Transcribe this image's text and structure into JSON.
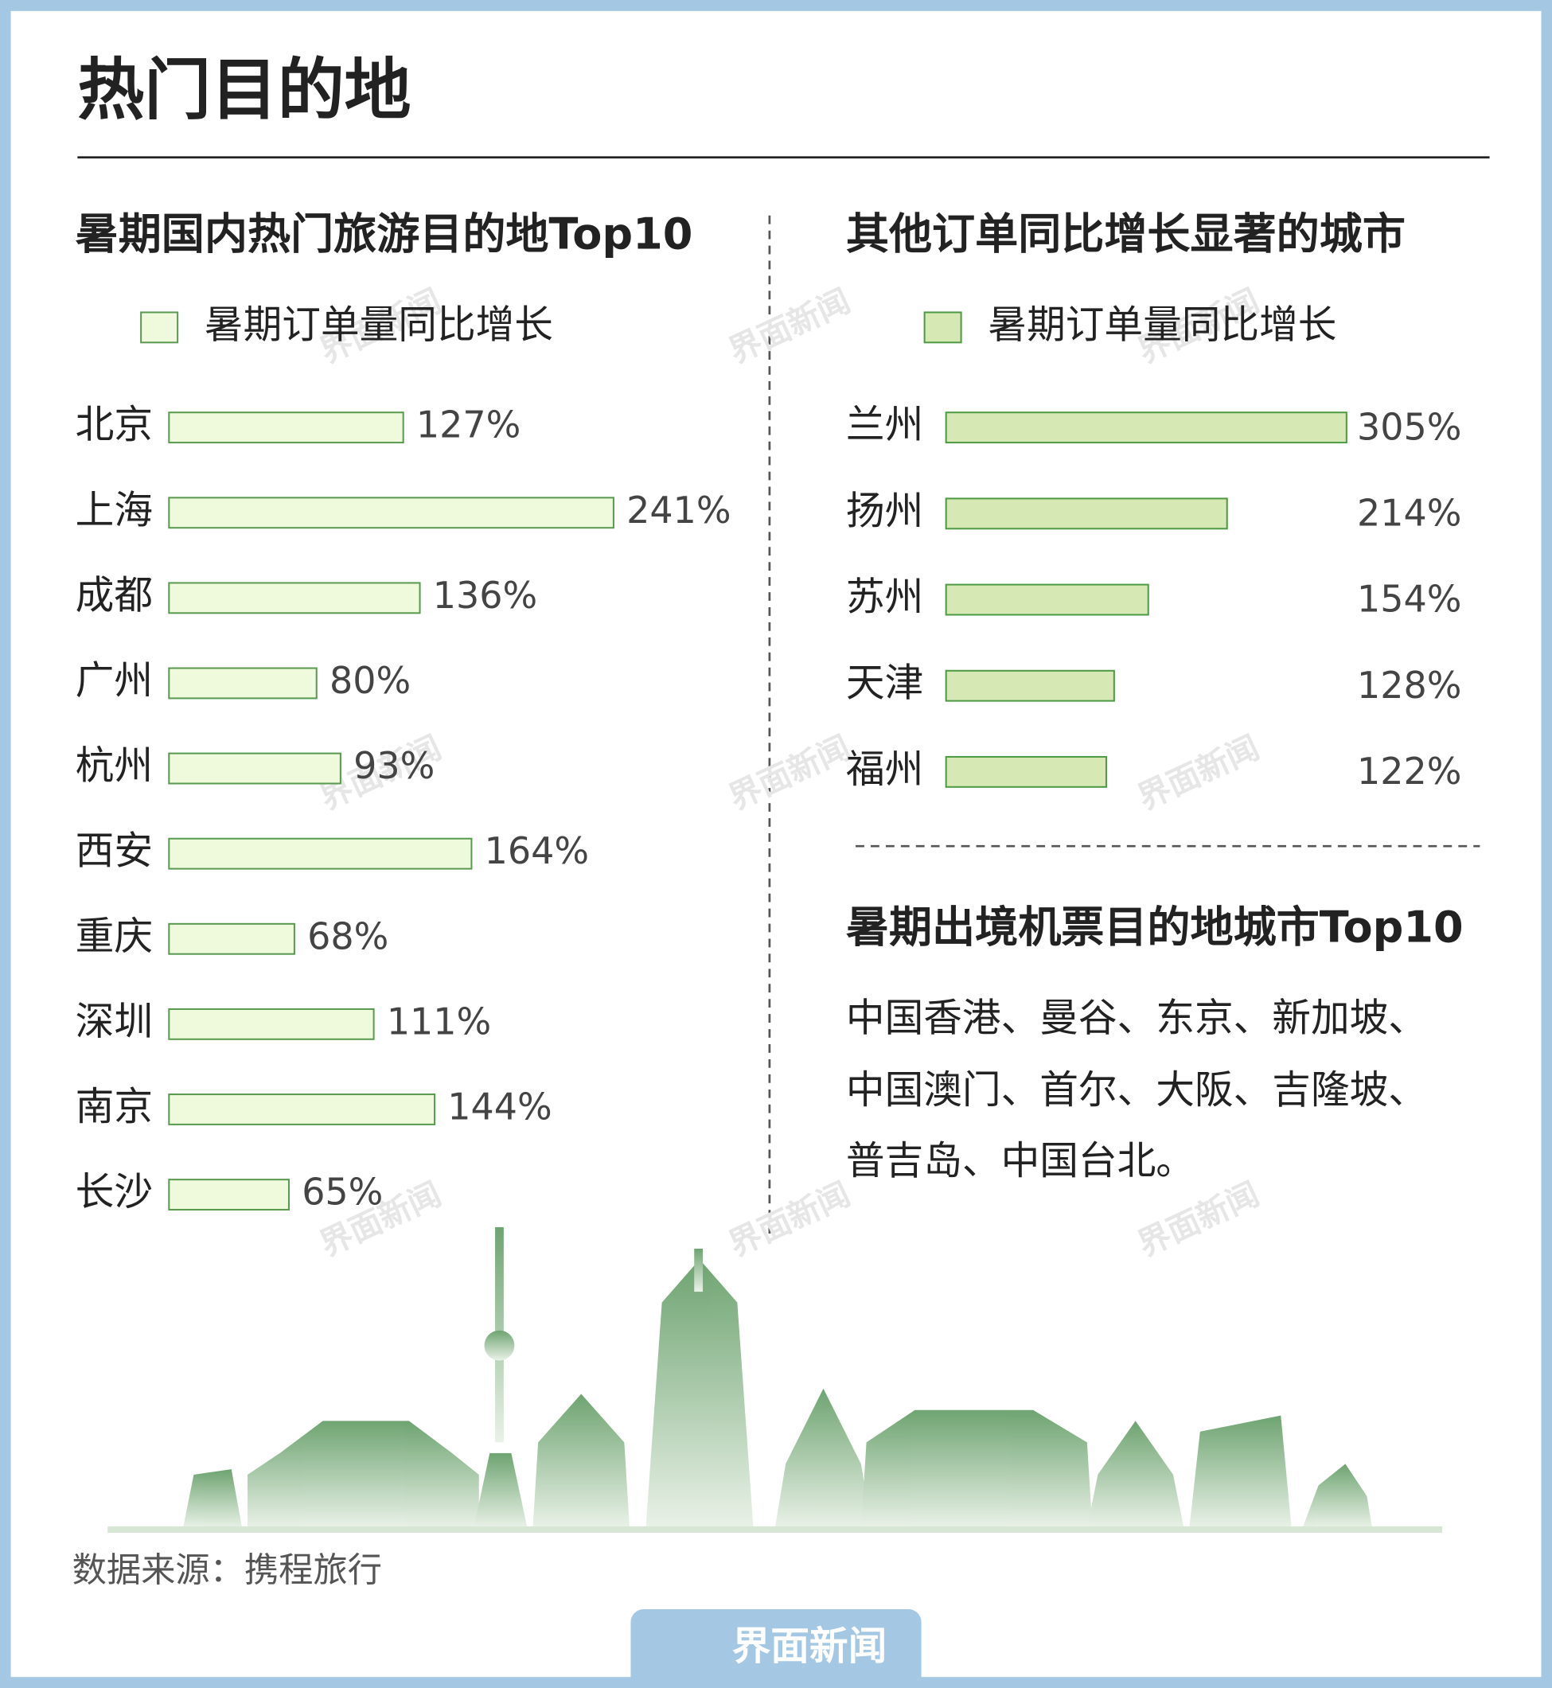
{
  "title": "热门目的地",
  "chart_data": [
    {
      "type": "hbar",
      "title": "暑期国内热门旅游目的地Top10",
      "categories": [
        "北京",
        "上海",
        "成都",
        "广州",
        "杭州",
        "西安",
        "重庆",
        "深圳",
        "南京",
        "长沙"
      ],
      "series": [
        {
          "name": "暑期订单量同比增长",
          "color": "#eefadb",
          "stroke": "#5a9a50",
          "values": [
            127,
            241,
            136,
            80,
            93,
            164,
            68,
            111,
            144,
            65
          ],
          "value_labels": [
            "127%",
            "241%",
            "136%",
            "80%",
            "93%",
            "164%",
            "68%",
            "111%",
            "144%",
            "65%"
          ]
        }
      ]
    },
    {
      "type": "hbar",
      "title": "其他订单同比增长显著的城市",
      "categories": [
        "兰州",
        "扬州",
        "苏州",
        "天津",
        "福州"
      ],
      "series": [
        {
          "name": "暑期订单量同比增长",
          "color": "#d6e9b5",
          "stroke": "#4e9a44",
          "values": [
            305,
            214,
            154,
            128,
            122
          ],
          "value_labels": [
            "305%",
            "214%",
            "154%",
            "128%",
            "122%"
          ]
        }
      ]
    }
  ],
  "outbound": {
    "title": "暑期出境机票目的地城市Top10",
    "lines": [
      "中国香港、曼谷、东京、新加坡、",
      "中国澳门、首尔、大阪、吉隆坡、",
      "普吉岛、中国台北。"
    ]
  },
  "source": "数据来源：携程旅行",
  "brand": "界面新闻"
}
